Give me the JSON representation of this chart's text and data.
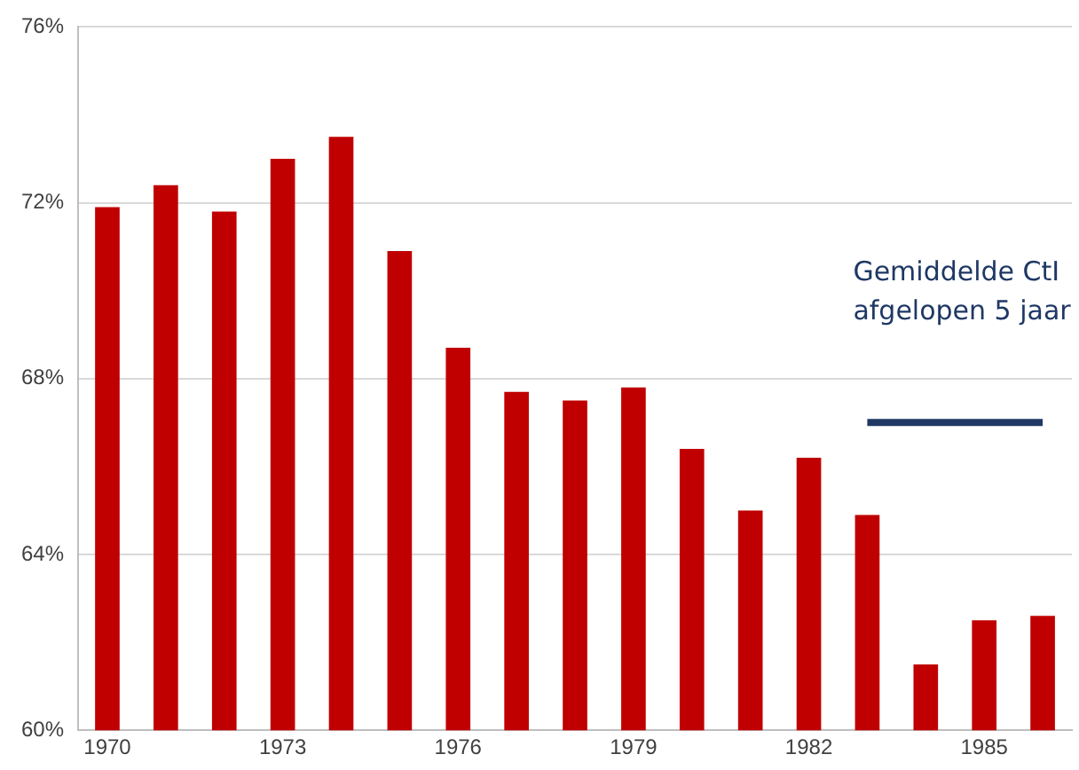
{
  "chart_data": {
    "type": "bar",
    "categories": [
      "1970",
      null,
      null,
      "1973",
      null,
      null,
      "1976",
      null,
      null,
      "1979",
      null,
      null,
      "1982",
      null,
      null,
      "1985",
      null
    ],
    "series": [
      {
        "color": "#c00000",
        "values": [
          71.9,
          72.4,
          71.8,
          73.0,
          73.5,
          70.9,
          68.7,
          67.7,
          67.5,
          67.8,
          66.4,
          65.0,
          66.2,
          64.9,
          61.5,
          62.5,
          62.6
        ]
      },
      {
        "type": "line",
        "name": "Gemiddelde CtI afgelopen 5 jaar",
        "color": "#1f3864",
        "values": [
          null,
          null,
          null,
          null,
          null,
          null,
          null,
          null,
          null,
          null,
          null,
          null,
          null,
          67.0,
          67.0,
          67.0,
          67.0
        ]
      }
    ],
    "ylim": [
      60,
      76
    ],
    "yticks": [
      {
        "value": 60,
        "label": "60%"
      },
      {
        "value": 64,
        "label": "64%"
      },
      {
        "value": 68,
        "label": "68%"
      },
      {
        "value": 72,
        "label": "72%"
      },
      {
        "value": 76,
        "label": "76%"
      }
    ],
    "grid": "y",
    "legend": false,
    "marker": "none",
    "line_style": "solid"
  }
}
